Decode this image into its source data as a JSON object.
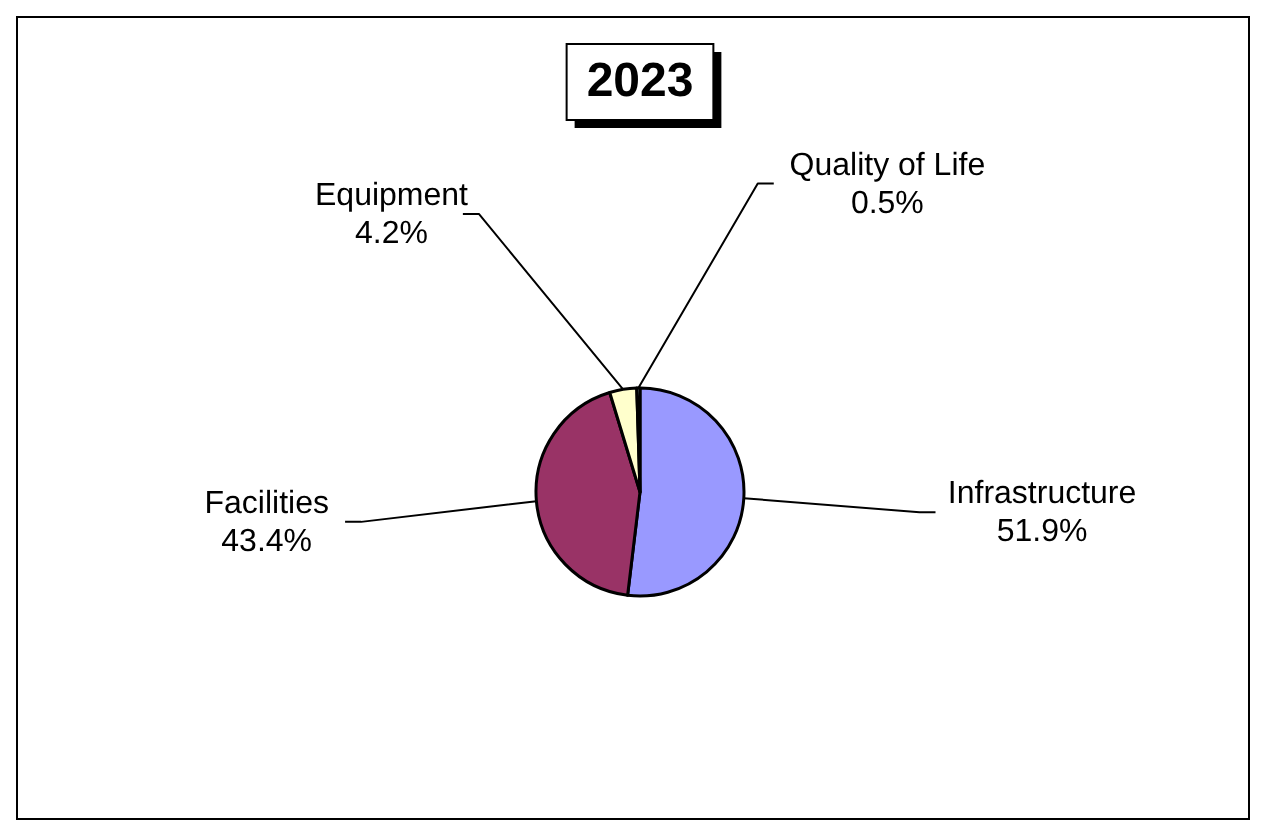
{
  "chart_data": {
    "type": "pie",
    "title": "2023",
    "categories": [
      "Infrastructure",
      "Facilities",
      "Equipment",
      "Quality of Life"
    ],
    "values": [
      51.9,
      43.4,
      4.2,
      0.5
    ],
    "colors": [
      "#9999ff",
      "#993366",
      "#ffffcc",
      "#ccffff"
    ],
    "value_labels": [
      "51.9%",
      "43.4%",
      "4.2%",
      "0.5%"
    ]
  }
}
